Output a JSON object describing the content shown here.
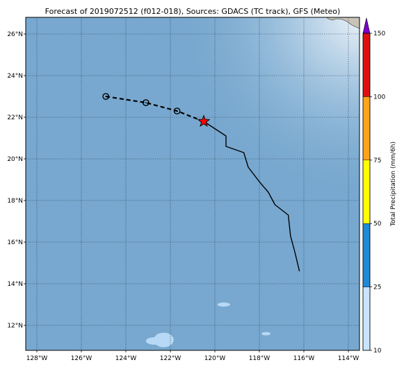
{
  "title": "Forecast of 2019072512 (f012-018), Sources: GDACS (TC track), GFS (Meteo)",
  "colors": {
    "ocean": "#78a8cf",
    "gridline": "#1f3347",
    "track": "#000000",
    "current_position_star": "#ff0000",
    "land": "#c9c3b8"
  },
  "map": {
    "lon_range": [
      -128.5,
      -113.5
    ],
    "lat_range": [
      10.8,
      26.8
    ],
    "lon_ticks": [
      {
        "value": -128,
        "label": "128°W"
      },
      {
        "value": -126,
        "label": "126°W"
      },
      {
        "value": -124,
        "label": "124°W"
      },
      {
        "value": -122,
        "label": "122°W"
      },
      {
        "value": -120,
        "label": "120°W"
      },
      {
        "value": -118,
        "label": "118°W"
      },
      {
        "value": -116,
        "label": "116°W"
      },
      {
        "value": -114,
        "label": "114°W"
      }
    ],
    "lat_ticks": [
      {
        "value": 12,
        "label": "12°N"
      },
      {
        "value": 14,
        "label": "14°N"
      },
      {
        "value": 16,
        "label": "16°N"
      },
      {
        "value": 18,
        "label": "18°N"
      },
      {
        "value": 20,
        "label": "20°N"
      },
      {
        "value": 22,
        "label": "22°N"
      },
      {
        "value": 24,
        "label": "24°N"
      },
      {
        "value": 26,
        "label": "26°N"
      }
    ],
    "observed_track": [
      {
        "lon": -116.2,
        "lat": 14.6
      },
      {
        "lon": -116.4,
        "lat": 15.5
      },
      {
        "lon": -116.6,
        "lat": 16.3
      },
      {
        "lon": -116.7,
        "lat": 17.3
      },
      {
        "lon": -117.3,
        "lat": 17.8
      },
      {
        "lon": -117.6,
        "lat": 18.4
      },
      {
        "lon": -118.0,
        "lat": 18.9
      },
      {
        "lon": -118.5,
        "lat": 19.6
      },
      {
        "lon": -118.7,
        "lat": 20.3
      },
      {
        "lon": -119.5,
        "lat": 20.6
      },
      {
        "lon": -119.5,
        "lat": 21.1
      },
      {
        "lon": -120.5,
        "lat": 21.8
      }
    ],
    "current_position": {
      "lon": -120.5,
      "lat": 21.8
    },
    "forecast_track": [
      {
        "lon": -120.5,
        "lat": 21.8
      },
      {
        "lon": -121.7,
        "lat": 22.3
      },
      {
        "lon": -123.1,
        "lat": 22.7
      },
      {
        "lon": -124.9,
        "lat": 23.0
      }
    ],
    "forecast_points": [
      {
        "lon": -121.7,
        "lat": 22.3
      },
      {
        "lon": -123.1,
        "lat": 22.7
      },
      {
        "lon": -124.9,
        "lat": 23.0
      }
    ],
    "precip_patches": [
      {
        "lon": -122.3,
        "lat": 11.3,
        "rx_deg": 0.45,
        "ry_deg": 0.35,
        "color": "#b8d9f5"
      },
      {
        "lon": -122.7,
        "lat": 11.25,
        "rx_deg": 0.4,
        "ry_deg": 0.18,
        "color": "#b8d9f5"
      },
      {
        "lon": -119.6,
        "lat": 13.0,
        "rx_deg": 0.28,
        "ry_deg": 0.1,
        "color": "#b8d9f5"
      },
      {
        "lon": -117.7,
        "lat": 11.6,
        "rx_deg": 0.2,
        "ry_deg": 0.08,
        "color": "#b8d9f5"
      }
    ]
  },
  "colorbar": {
    "label": "Total Precipitation (mm/6h)",
    "extend_color": "#7a00c8",
    "ticks": [
      "10",
      "25",
      "50",
      "75",
      "100",
      "150"
    ],
    "bins": [
      {
        "from": 10,
        "to": 25,
        "color": "#c8e4ff"
      },
      {
        "from": 25,
        "to": 50,
        "color": "#1e8ad8"
      },
      {
        "from": 50,
        "to": 75,
        "color": "#ffff00"
      },
      {
        "from": 75,
        "to": 100,
        "color": "#ffa31a"
      },
      {
        "from": 100,
        "to": 150,
        "color": "#e01010"
      }
    ]
  }
}
